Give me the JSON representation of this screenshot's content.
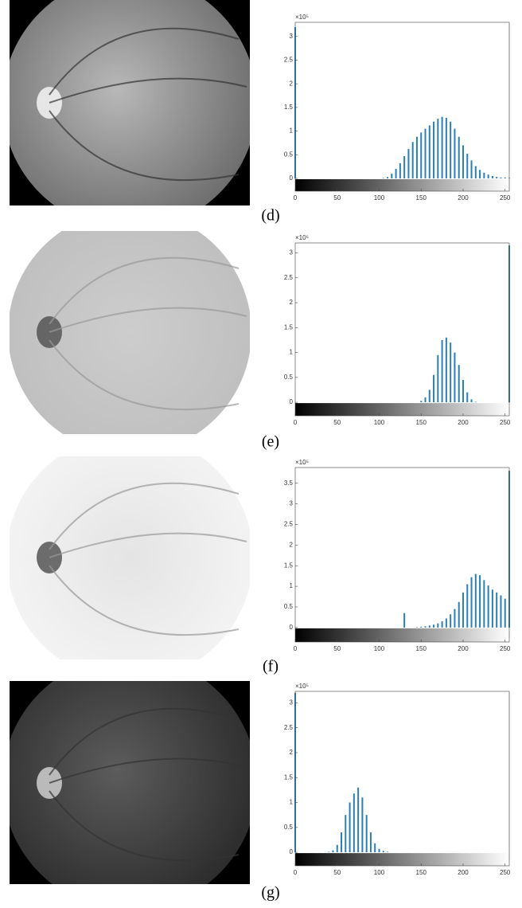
{
  "chart_data": [
    {
      "type": "bar",
      "caption": "(d)",
      "y_exponent": "×10⁵",
      "color": "#2a7fb8",
      "x": [
        0,
        5,
        10,
        15,
        20,
        25,
        30,
        35,
        40,
        45,
        50,
        55,
        60,
        65,
        70,
        75,
        80,
        85,
        90,
        95,
        100,
        105,
        110,
        115,
        120,
        125,
        130,
        135,
        140,
        145,
        150,
        155,
        160,
        165,
        170,
        175,
        180,
        185,
        190,
        195,
        200,
        205,
        210,
        215,
        220,
        225,
        230,
        235,
        240,
        245,
        250,
        255
      ],
      "values": [
        3.2,
        0,
        0,
        0,
        0,
        0,
        0,
        0,
        0,
        0,
        0,
        0,
        0,
        0,
        0,
        0,
        0,
        0,
        0,
        0,
        0,
        0.01,
        0.03,
        0.1,
        0.2,
        0.32,
        0.47,
        0.62,
        0.77,
        0.88,
        0.97,
        1.05,
        1.12,
        1.2,
        1.26,
        1.3,
        1.28,
        1.2,
        1.05,
        0.88,
        0.7,
        0.52,
        0.38,
        0.26,
        0.18,
        0.12,
        0.08,
        0.05,
        0.03,
        0.02,
        0.02,
        0.01
      ],
      "xlim": [
        0,
        255
      ],
      "ylim": [
        -0.27,
        3.3
      ],
      "xticks": [
        0,
        50,
        100,
        150,
        200,
        250
      ],
      "yticks": [
        0,
        0.5,
        1,
        1.5,
        2,
        2.5,
        3
      ]
    },
    {
      "type": "bar",
      "caption": "(e)",
      "y_exponent": "×10⁵",
      "color": "#2a7fb8",
      "x": [
        0,
        5,
        10,
        15,
        20,
        25,
        30,
        35,
        40,
        45,
        50,
        55,
        60,
        65,
        70,
        75,
        80,
        85,
        90,
        95,
        100,
        105,
        110,
        115,
        120,
        125,
        130,
        135,
        140,
        145,
        150,
        155,
        160,
        165,
        170,
        175,
        180,
        185,
        190,
        195,
        200,
        205,
        210,
        215,
        220,
        225,
        230,
        235,
        240,
        245,
        250,
        255
      ],
      "values": [
        0,
        0,
        0,
        0,
        0,
        0,
        0,
        0,
        0,
        0,
        0,
        0,
        0,
        0,
        0,
        0,
        0,
        0,
        0,
        0,
        0,
        0,
        0,
        0,
        0,
        0,
        0,
        0,
        0,
        0,
        0.03,
        0.1,
        0.25,
        0.55,
        0.95,
        1.25,
        1.3,
        1.2,
        1.0,
        0.75,
        0.45,
        0.2,
        0.06,
        0.01,
        0,
        0,
        0,
        0,
        0,
        0,
        0,
        3.15
      ],
      "xlim": [
        0,
        255
      ],
      "ylim": [
        -0.27,
        3.2
      ],
      "xticks": [
        0,
        50,
        100,
        150,
        200,
        250
      ],
      "yticks": [
        0,
        0.5,
        1,
        1.5,
        2,
        2.5,
        3
      ]
    },
    {
      "type": "bar",
      "caption": "(f)",
      "y_exponent": "×10⁵",
      "color": "#2a7fb8",
      "x": [
        0,
        5,
        10,
        15,
        20,
        25,
        30,
        35,
        40,
        45,
        50,
        55,
        60,
        65,
        70,
        75,
        80,
        85,
        90,
        95,
        100,
        105,
        110,
        115,
        120,
        125,
        130,
        135,
        140,
        145,
        150,
        155,
        160,
        165,
        170,
        175,
        180,
        185,
        190,
        195,
        200,
        205,
        210,
        215,
        220,
        225,
        230,
        235,
        240,
        245,
        250,
        255
      ],
      "values": [
        0,
        0,
        0,
        0,
        0,
        0,
        0,
        0,
        0,
        0,
        0,
        0,
        0,
        0,
        0,
        0,
        0,
        0,
        0,
        0,
        0,
        0,
        0,
        0,
        0,
        0,
        0.35,
        0,
        0,
        0.01,
        0.02,
        0.03,
        0.05,
        0.07,
        0.1,
        0.15,
        0.22,
        0.32,
        0.45,
        0.62,
        0.85,
        1.05,
        1.22,
        1.3,
        1.27,
        1.15,
        1.02,
        0.92,
        0.85,
        0.78,
        0.7,
        3.8
      ],
      "xlim": [
        0,
        255
      ],
      "ylim": [
        -0.35,
        3.88
      ],
      "xticks": [
        0,
        50,
        100,
        150,
        200,
        250
      ],
      "yticks": [
        0,
        0.5,
        1,
        1.5,
        2,
        2.5,
        3,
        3.5
      ]
    },
    {
      "type": "bar",
      "caption": "(g)",
      "y_exponent": "×10⁵",
      "color": "#2a7fb8",
      "x": [
        0,
        5,
        10,
        15,
        20,
        25,
        30,
        35,
        40,
        45,
        50,
        55,
        60,
        65,
        70,
        75,
        80,
        85,
        90,
        95,
        100,
        105,
        110,
        115,
        120,
        125,
        130,
        135,
        140,
        145,
        150,
        155,
        160,
        165,
        170,
        175,
        180,
        185,
        190,
        195,
        200,
        205,
        210,
        215,
        220,
        225,
        230,
        235,
        240,
        245,
        250,
        255
      ],
      "values": [
        3.2,
        0,
        0,
        0,
        0,
        0,
        0,
        0,
        0.01,
        0.04,
        0.15,
        0.4,
        0.75,
        1.0,
        1.18,
        1.3,
        1.1,
        0.75,
        0.4,
        0.18,
        0.07,
        0.03,
        0.01,
        0,
        0,
        0,
        0,
        0,
        0,
        0,
        0,
        0,
        0,
        0,
        0,
        0,
        0,
        0,
        0,
        0,
        0,
        0,
        0,
        0,
        0,
        0,
        0,
        0,
        0,
        0,
        0,
        0
      ],
      "xlim": [
        0,
        255
      ],
      "ylim": [
        -0.27,
        3.23
      ],
      "xticks": [
        0,
        50,
        100,
        150,
        200,
        250
      ],
      "yticks": [
        0,
        0.5,
        1,
        1.5,
        2,
        2.5,
        3
      ]
    }
  ]
}
